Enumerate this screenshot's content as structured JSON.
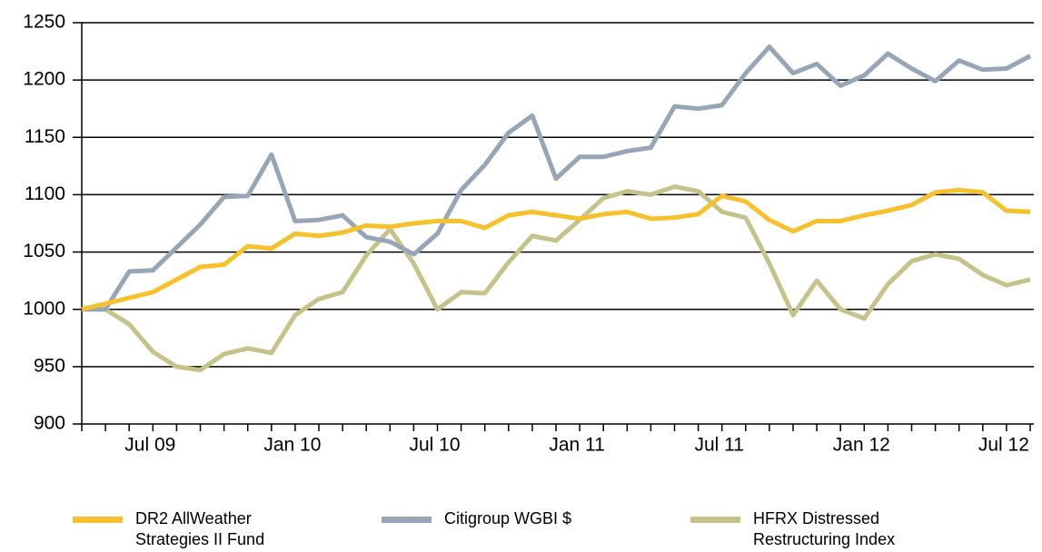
{
  "chart_data": {
    "type": "line",
    "categories": [
      null,
      null,
      null,
      "Jul 09",
      null,
      null,
      null,
      null,
      null,
      "Jan 10",
      null,
      null,
      null,
      null,
      null,
      "Jul 10",
      null,
      null,
      null,
      null,
      null,
      "Jan 11",
      null,
      null,
      null,
      null,
      null,
      "Jul 11",
      null,
      null,
      null,
      null,
      null,
      "Jan 12",
      null,
      null,
      null,
      null,
      null,
      "Jul 12",
      null
    ],
    "series": [
      {
        "name": "DR2 AllWeather Strategies II Fund",
        "color": "#f6c12c",
        "values": [
          1000,
          1005,
          1010,
          1015,
          1026,
          1037,
          1039,
          1055,
          1053,
          1066,
          1064,
          1067,
          1073,
          1072,
          1075,
          1077,
          1077,
          1071,
          1082,
          1085,
          1082,
          1079,
          1083,
          1085,
          1079,
          1080,
          1083,
          1099,
          1094,
          1078,
          1068,
          1077,
          1077,
          1082,
          1086,
          1091,
          1102,
          1104,
          1102,
          1086,
          1085
        ]
      },
      {
        "name": "Citigroup WGBI $",
        "color": "#97a6b6",
        "values": [
          1000,
          1000,
          1033,
          1034,
          1054,
          1074,
          1098,
          1099,
          1135,
          1077,
          1078,
          1082,
          1063,
          1059,
          1048,
          1066,
          1104,
          1126,
          1154,
          1169,
          1114,
          1133,
          1133,
          1138,
          1141,
          1177,
          1175,
          1178,
          1206,
          1229,
          1206,
          1214,
          1195,
          1204,
          1223,
          1210,
          1199,
          1217,
          1209,
          1210,
          1221
        ]
      },
      {
        "name": "HFRX Distressed Restructuring Index",
        "color": "#c5c38a",
        "values": [
          1000,
          1000,
          987,
          963,
          950,
          947,
          961,
          966,
          962,
          995,
          1009,
          1015,
          1047,
          1070,
          1040,
          1000,
          1015,
          1014,
          1041,
          1064,
          1060,
          1078,
          1097,
          1103,
          1100,
          1107,
          1103,
          1085,
          1080,
          1040,
          995,
          1025,
          1000,
          992,
          1022,
          1042,
          1048,
          1044,
          1030,
          1021,
          1026
        ]
      }
    ],
    "ylim": [
      900,
      1250
    ],
    "yticks": [
      900,
      950,
      1000,
      1050,
      1100,
      1150,
      1200,
      1250
    ],
    "grid": true
  }
}
